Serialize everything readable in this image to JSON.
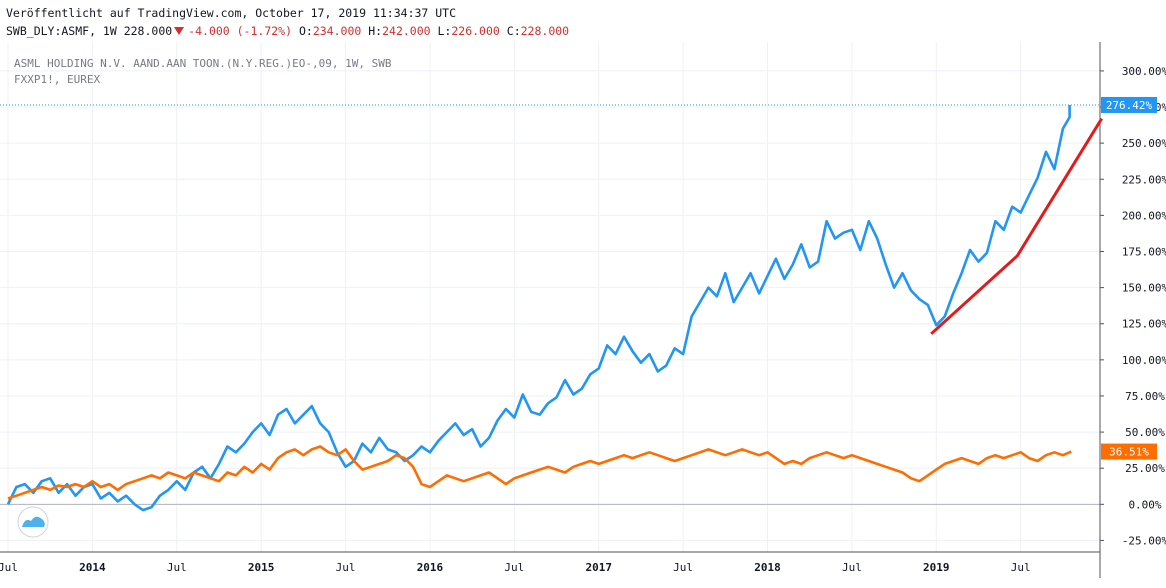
{
  "header": {
    "published": "Veröffentlicht auf TradingView.com, October 17, 2019 11:34:37 UTC",
    "symbol": "SWB_DLY:ASMF, 1W 228.000",
    "change": "-4.000 (-1.72%)",
    "o_label": "O:",
    "o_value": "234.000",
    "h_label": "H:",
    "h_value": "242.000",
    "l_label": "L:",
    "l_value": "226.000",
    "c_label": "C:",
    "c_value": "228.000"
  },
  "legend": {
    "line1": "ASML HOLDING N.V. AAND.AAN TOON.(N.Y.REG.)EO-,09, 1W, SWB",
    "line2": "FXXP1!, EUREX"
  },
  "badges": {
    "asml": "276.42%",
    "fxxp": "36.51%"
  },
  "colors": {
    "asml": "#2196f3",
    "fxxp": "#ff6d00",
    "trend": "#e31a1c",
    "grid": "#eef1f5",
    "axis_text": "#131722"
  },
  "chart_data": {
    "type": "line",
    "title": "",
    "y_unit": "%",
    "ylim": [
      -33,
      320
    ],
    "y_ticks": [
      -25,
      0,
      25,
      50,
      75,
      100,
      125,
      150,
      175,
      200,
      225,
      250,
      275,
      300
    ],
    "y_tick_labels": [
      "-25.00%",
      "0.00%",
      "25.00%",
      "50.00%",
      "75.00%",
      "100.00%",
      "125.00%",
      "150.00%",
      "175.00%",
      "200.00%",
      "225.00%",
      "250.00%",
      "275.00%",
      "300.00%"
    ],
    "xlim": [
      2013.5,
      2019.97
    ],
    "x_ticks": [
      2013.5,
      2014.0,
      2014.5,
      2015.0,
      2015.5,
      2016.0,
      2016.5,
      2017.0,
      2017.5,
      2018.0,
      2018.5,
      2019.0,
      2019.5
    ],
    "x_tick_labels": [
      "Jul",
      "2014",
      "Jul",
      "2015",
      "Jul",
      "2016",
      "Jul",
      "2017",
      "Jul",
      "2018",
      "Jul",
      "2019",
      "Jul"
    ],
    "grid": true,
    "series": [
      {
        "name": "ASML HOLDING N.V. AAND.AAN TOON.(N.Y.REG.)EO-,09",
        "color": "#2196f3",
        "x": [
          2013.5,
          2013.55,
          2013.6,
          2013.65,
          2013.7,
          2013.75,
          2013.8,
          2013.85,
          2013.9,
          2013.95,
          2014.0,
          2014.05,
          2014.1,
          2014.15,
          2014.2,
          2014.25,
          2014.3,
          2014.35,
          2014.4,
          2014.45,
          2014.5,
          2014.55,
          2014.6,
          2014.65,
          2014.7,
          2014.75,
          2014.8,
          2014.85,
          2014.9,
          2014.95,
          2015.0,
          2015.05,
          2015.1,
          2015.15,
          2015.2,
          2015.25,
          2015.3,
          2015.35,
          2015.4,
          2015.45,
          2015.5,
          2015.55,
          2015.6,
          2015.65,
          2015.7,
          2015.75,
          2015.8,
          2015.85,
          2015.9,
          2015.95,
          2016.0,
          2016.05,
          2016.1,
          2016.15,
          2016.2,
          2016.25,
          2016.3,
          2016.35,
          2016.4,
          2016.45,
          2016.5,
          2016.55,
          2016.6,
          2016.65,
          2016.7,
          2016.75,
          2016.8,
          2016.85,
          2016.9,
          2016.95,
          2017.0,
          2017.05,
          2017.1,
          2017.15,
          2017.2,
          2017.25,
          2017.3,
          2017.35,
          2017.4,
          2017.45,
          2017.5,
          2017.55,
          2017.6,
          2017.65,
          2017.7,
          2017.75,
          2017.8,
          2017.85,
          2017.9,
          2017.95,
          2018.0,
          2018.05,
          2018.1,
          2018.15,
          2018.2,
          2018.25,
          2018.3,
          2018.35,
          2018.4,
          2018.45,
          2018.5,
          2018.55,
          2018.6,
          2018.65,
          2018.7,
          2018.75,
          2018.8,
          2018.85,
          2018.9,
          2018.95,
          2019.0,
          2019.05,
          2019.1,
          2019.15,
          2019.2,
          2019.25,
          2019.3,
          2019.35,
          2019.4,
          2019.45,
          2019.5,
          2019.55,
          2019.6,
          2019.65,
          2019.7,
          2019.75,
          2019.79
        ],
        "y": [
          0,
          12,
          14,
          8,
          16,
          18,
          8,
          14,
          6,
          12,
          14,
          4,
          8,
          2,
          6,
          0,
          -4,
          -2,
          6,
          10,
          16,
          10,
          22,
          26,
          18,
          28,
          40,
          36,
          42,
          50,
          56,
          48,
          62,
          66,
          56,
          62,
          68,
          56,
          50,
          36,
          26,
          30,
          42,
          36,
          46,
          38,
          36,
          30,
          34,
          40,
          36,
          44,
          50,
          56,
          48,
          52,
          40,
          46,
          58,
          66,
          60,
          76,
          64,
          62,
          70,
          74,
          86,
          76,
          80,
          90,
          94,
          110,
          104,
          116,
          106,
          98,
          104,
          92,
          96,
          108,
          104,
          130,
          140,
          150,
          144,
          160,
          140,
          150,
          160,
          146,
          158,
          170,
          156,
          166,
          180,
          164,
          168,
          196,
          184,
          188,
          190,
          176,
          196,
          184,
          166,
          150,
          160,
          148,
          142,
          138,
          124,
          130,
          146,
          160,
          176,
          168,
          174,
          196,
          190,
          206,
          202,
          214,
          226,
          244,
          232,
          260,
          268
        ],
        "last_point": [
          2019.79,
          276.42
        ]
      },
      {
        "name": "FXXP1!, EUREX",
        "color": "#ff6d00",
        "x": [
          2013.5,
          2013.55,
          2013.6,
          2013.65,
          2013.7,
          2013.75,
          2013.8,
          2013.85,
          2013.9,
          2013.95,
          2014.0,
          2014.05,
          2014.1,
          2014.15,
          2014.2,
          2014.25,
          2014.3,
          2014.35,
          2014.4,
          2014.45,
          2014.5,
          2014.55,
          2014.6,
          2014.65,
          2014.7,
          2014.75,
          2014.8,
          2014.85,
          2014.9,
          2014.95,
          2015.0,
          2015.05,
          2015.1,
          2015.15,
          2015.2,
          2015.25,
          2015.3,
          2015.35,
          2015.4,
          2015.45,
          2015.5,
          2015.55,
          2015.6,
          2015.65,
          2015.7,
          2015.75,
          2015.8,
          2015.85,
          2015.9,
          2015.95,
          2016.0,
          2016.05,
          2016.1,
          2016.15,
          2016.2,
          2016.25,
          2016.3,
          2016.35,
          2016.4,
          2016.45,
          2016.5,
          2016.55,
          2016.6,
          2016.65,
          2016.7,
          2016.75,
          2016.8,
          2016.85,
          2016.9,
          2016.95,
          2017.0,
          2017.05,
          2017.1,
          2017.15,
          2017.2,
          2017.25,
          2017.3,
          2017.35,
          2017.4,
          2017.45,
          2017.5,
          2017.55,
          2017.6,
          2017.65,
          2017.7,
          2017.75,
          2017.8,
          2017.85,
          2017.9,
          2017.95,
          2018.0,
          2018.05,
          2018.1,
          2018.15,
          2018.2,
          2018.25,
          2018.3,
          2018.35,
          2018.4,
          2018.45,
          2018.5,
          2018.55,
          2018.6,
          2018.65,
          2018.7,
          2018.75,
          2018.8,
          2018.85,
          2018.9,
          2018.95,
          2019.0,
          2019.05,
          2019.1,
          2019.15,
          2019.2,
          2019.25,
          2019.3,
          2019.35,
          2019.4,
          2019.45,
          2019.5,
          2019.55,
          2019.6,
          2019.65,
          2019.7,
          2019.75,
          2019.8
        ],
        "y": [
          4,
          6,
          8,
          10,
          12,
          10,
          13,
          12,
          14,
          12,
          16,
          12,
          14,
          10,
          14,
          16,
          18,
          20,
          18,
          22,
          20,
          18,
          22,
          20,
          18,
          16,
          22,
          20,
          26,
          22,
          28,
          24,
          32,
          36,
          38,
          34,
          38,
          40,
          36,
          34,
          38,
          30,
          24,
          26,
          28,
          30,
          34,
          32,
          26,
          14,
          12,
          16,
          20,
          18,
          16,
          18,
          20,
          22,
          18,
          14,
          18,
          20,
          22,
          24,
          26,
          24,
          22,
          26,
          28,
          30,
          28,
          30,
          32,
          34,
          32,
          34,
          36,
          34,
          32,
          30,
          32,
          34,
          36,
          38,
          36,
          34,
          36,
          38,
          36,
          34,
          36,
          32,
          28,
          30,
          28,
          32,
          34,
          36,
          34,
          32,
          34,
          32,
          30,
          28,
          26,
          24,
          22,
          18,
          16,
          20,
          24,
          28,
          30,
          32,
          30,
          28,
          32,
          34,
          32,
          34,
          36,
          32,
          30,
          34,
          36,
          34,
          36.51
        ],
        "last_point": [
          2019.8,
          36.51
        ]
      }
    ],
    "annotations": [
      {
        "type": "trend_line",
        "color": "#e31a1c",
        "points": [
          [
            2018.97,
            118
          ],
          [
            2019.48,
            172
          ],
          [
            2019.98,
            267
          ]
        ]
      }
    ]
  }
}
